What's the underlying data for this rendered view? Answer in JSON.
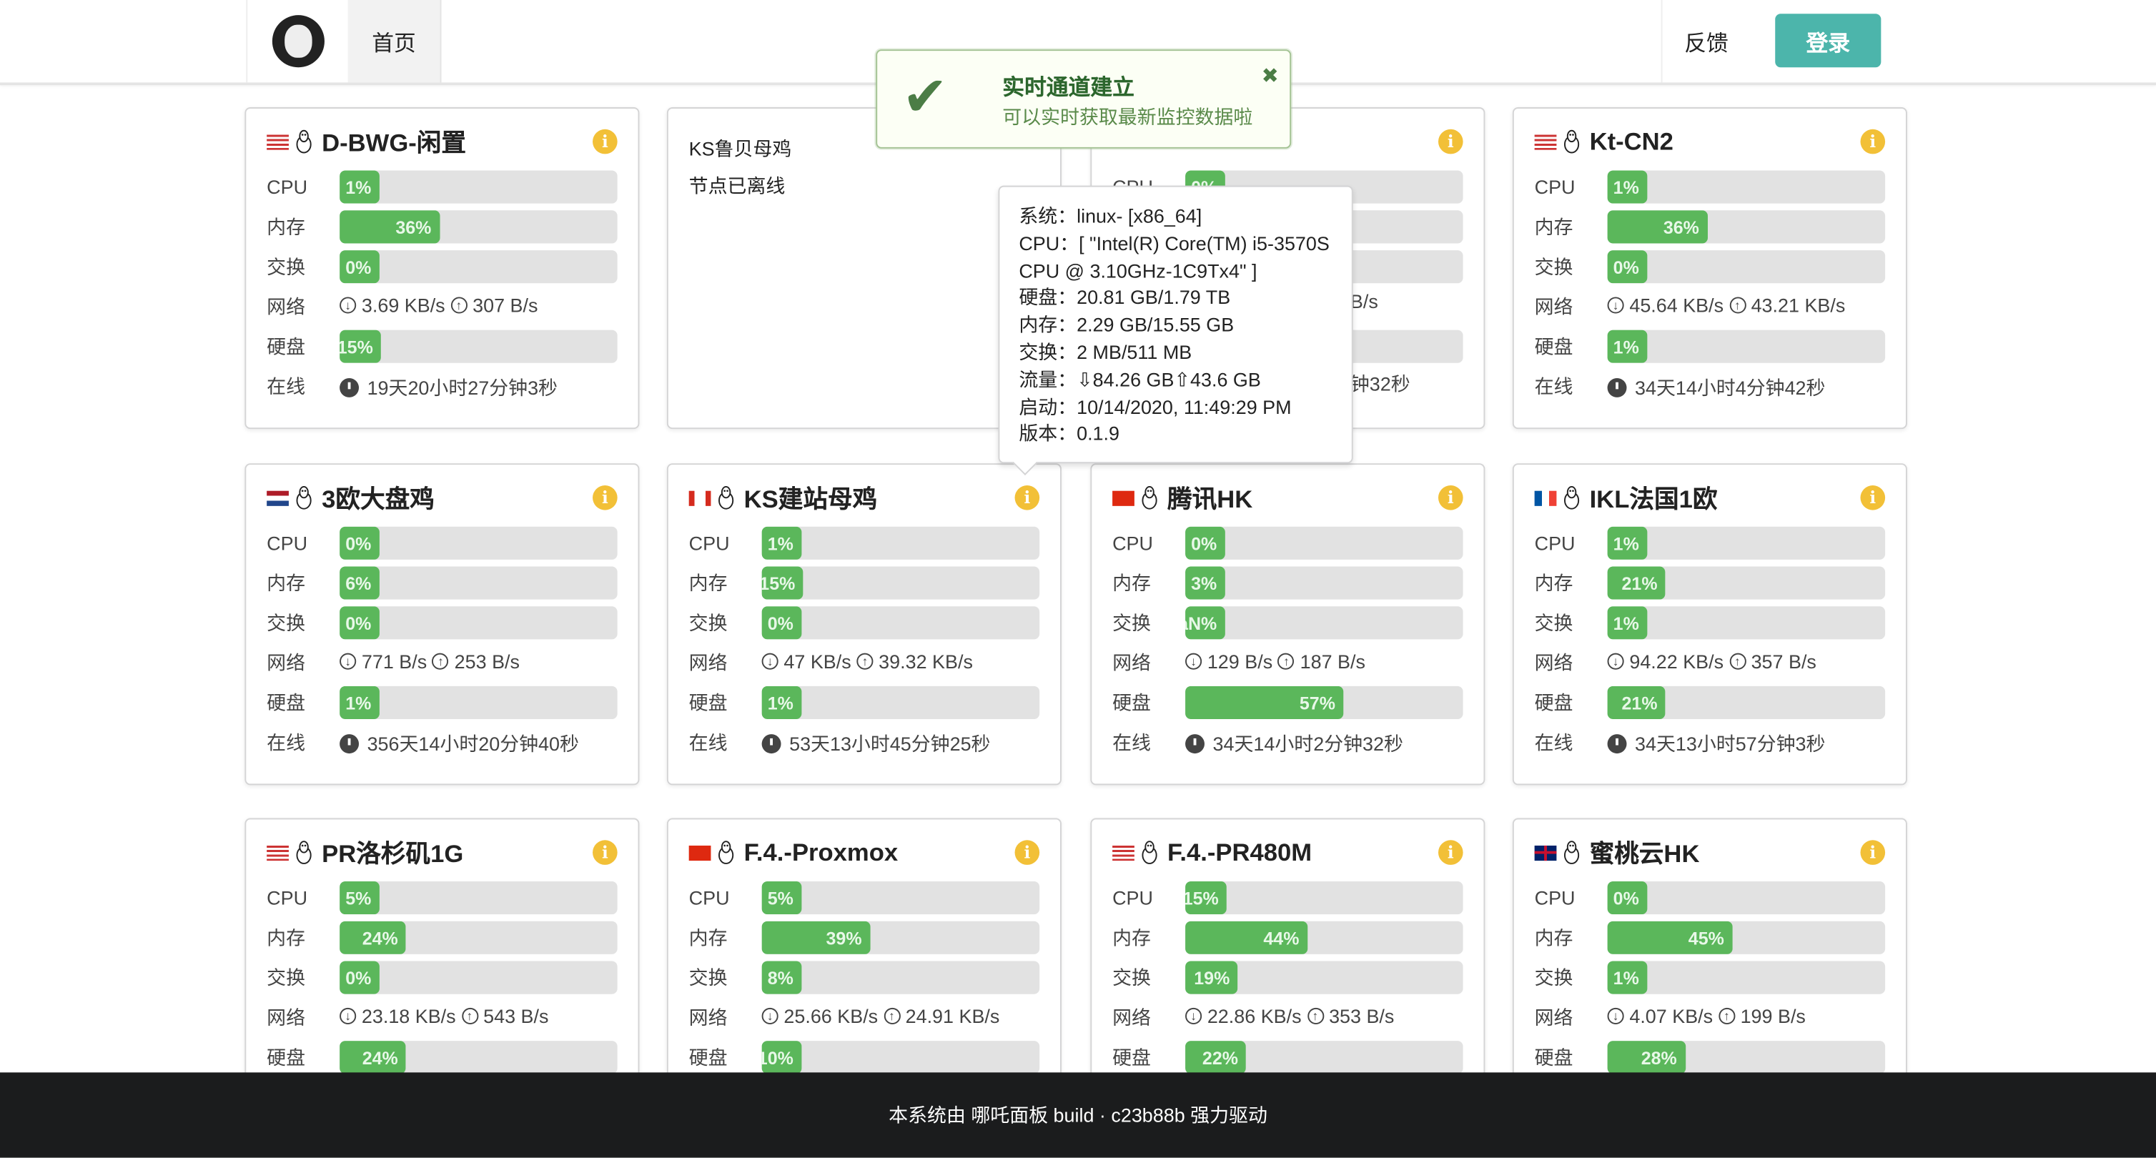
{
  "nav": {
    "home": "首页",
    "feedback": "反馈",
    "login": "登录"
  },
  "labels": {
    "cpu": "CPU",
    "mem": "内存",
    "swap": "交换",
    "net": "网络",
    "disk": "硬盘",
    "uptime": "在线"
  },
  "colors": {
    "bar_fill": "#5bb75b",
    "bar_track": "#e2e2e2",
    "login_button": "#4cb5ab",
    "info_icon": "#f2c037",
    "footer": "#1b1c1d"
  },
  "toast": {
    "title": "实时通道建立",
    "message": "可以实时获取最新监控数据啦",
    "icon": "check-icon"
  },
  "popup": {
    "lines": [
      "系统：linux- [x86_64]",
      "CPU：[ \"Intel(R) Core(TM) i5-3570S CPU @ 3.10GHz-1C9Tx4\" ]",
      "硬盘：20.81 GB/1.79 TB",
      "内存：2.29 GB/15.55 GB",
      "交换：2 MB/511 MB",
      "流量：⇩84.26 GB⇧43.6 GB",
      "启动：10/14/2020, 11:49:29 PM",
      "版本：0.1.9"
    ]
  },
  "servers": [
    {
      "name": "D-BWG-闲置",
      "flag": "us",
      "cpu": 1,
      "mem": 36,
      "swap": 0,
      "down": "3.69 KB/s",
      "up": "307 B/s",
      "disk": 15,
      "uptime": "19天20小时27分钟3秒"
    },
    {
      "name": "KS鲁贝母鸡",
      "offline": true,
      "status": "节点已离线"
    },
    {
      "name": "",
      "flag": "",
      "cpu": 0,
      "hidden": true,
      "net_fragment": "B/s",
      "uptime_fragment": "钟32秒"
    },
    {
      "name": "Kt-CN2",
      "flag": "us",
      "cpu": 1,
      "mem": 36,
      "swap": 0,
      "down": "45.64 KB/s",
      "up": "43.21 KB/s",
      "disk": 1,
      "uptime": "34天14小时4分钟42秒"
    },
    {
      "name": "3欧大盘鸡",
      "flag": "nl",
      "cpu": 0,
      "mem": 6,
      "swap": 0,
      "down": "771 B/s",
      "up": "253 B/s",
      "disk": 1,
      "uptime": "356天14小时20分钟40秒"
    },
    {
      "name": "KS建站母鸡",
      "flag": "ca",
      "cpu": 1,
      "mem": 15,
      "swap": 0,
      "down": "47 KB/s",
      "up": "39.32 KB/s",
      "disk": 1,
      "uptime": "53天13小时45分钟25秒"
    },
    {
      "name": "腾讯HK",
      "flag": "hk",
      "cpu": 0,
      "mem": 3,
      "swap": "NaN",
      "down": "129 B/s",
      "up": "187 B/s",
      "disk": 57,
      "uptime": "34天14小时2分钟32秒"
    },
    {
      "name": "IKL法国1欧",
      "flag": "fr",
      "cpu": 1,
      "mem": 21,
      "swap": 1,
      "down": "94.22 KB/s",
      "up": "357 B/s",
      "disk": 21,
      "uptime": "34天13小时57分钟3秒"
    },
    {
      "name": "PR洛杉矶1G",
      "flag": "us",
      "cpu": 5,
      "mem": 24,
      "swap": 0,
      "down": "23.18 KB/s",
      "up": "543 B/s",
      "disk": 24
    },
    {
      "name": "F.4.-Proxmox",
      "flag": "cn",
      "cpu": 5,
      "mem": 39,
      "swap": 8,
      "down": "25.66 KB/s",
      "up": "24.91 KB/s",
      "disk": 10
    },
    {
      "name": "F.4.-PR480M",
      "flag": "us",
      "cpu": 15,
      "mem": 44,
      "swap": 19,
      "down": "22.86 KB/s",
      "up": "353 B/s",
      "disk": 22
    },
    {
      "name": "蜜桃云HK",
      "flag": "gb",
      "cpu": 0,
      "mem": 45,
      "swap": 1,
      "down": "4.07 KB/s",
      "up": "199 B/s",
      "disk": 28
    }
  ],
  "footer": {
    "text": "本系统由 哪吒面板 build · c23b88b 强力驱动"
  }
}
